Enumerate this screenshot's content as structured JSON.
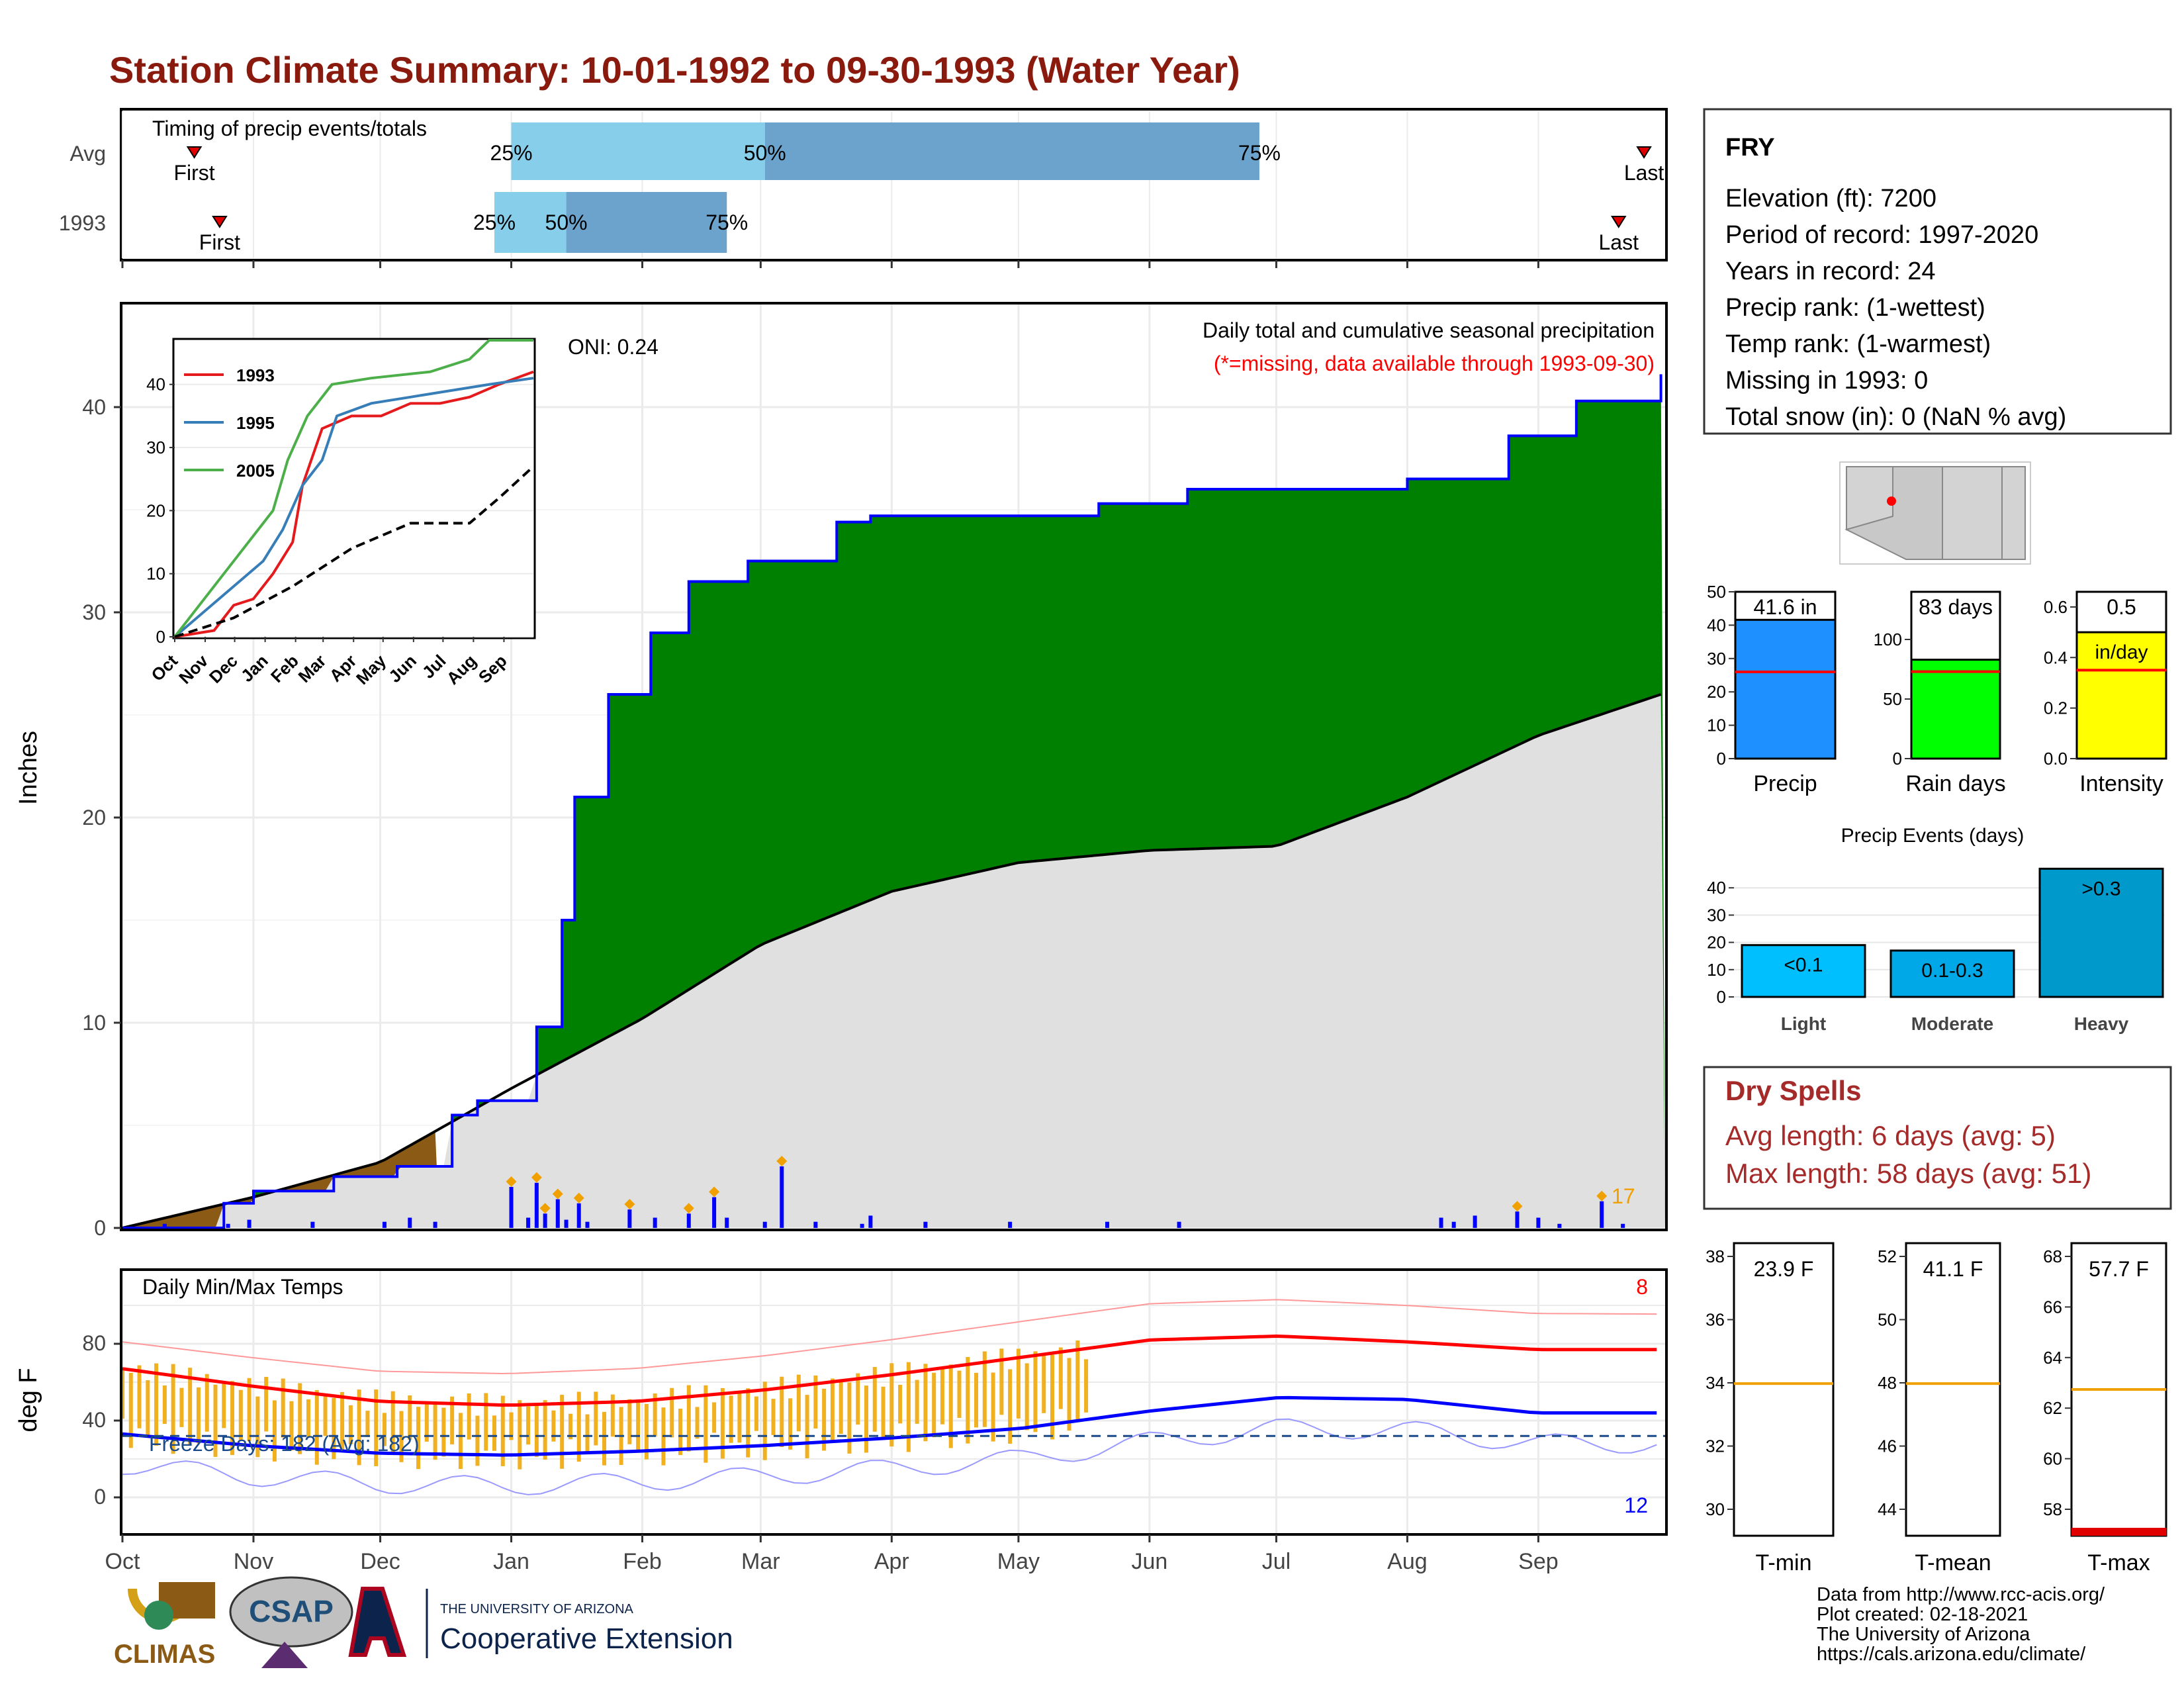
{
  "title": "Station Climate Summary: 10-01-1992 to 09-30-1993 (Water Year)",
  "colors": {
    "title": "#8b1a0e",
    "green": "#008000",
    "blue_line": "#0000ff",
    "brown": "#8b5a14",
    "gray_fill": "#e0e0e0",
    "orange": "#f0b020",
    "light_blue": "#87ceeb",
    "mid_blue": "#6ba3cc",
    "red": "#ff0000",
    "dry_spell": "#a52a2a"
  },
  "timing": {
    "label": "Timing of precip events/totals",
    "rows": [
      {
        "name": "Avg",
        "first": "2000-10-18",
        "p25": "2001-01-01",
        "p50": "2001-03-02",
        "p75": "2001-06-27",
        "last": "2001-09-26",
        "first_label": "First",
        "last_label": "Last",
        "p25_label": "25%",
        "p50_label": "50%",
        "p75_label": "75%"
      },
      {
        "name": "1993",
        "first": "1992-10-24",
        "p25": "1992-12-28",
        "p50": "1993-01-14",
        "p75": "1993-02-21",
        "last": "1993-09-20",
        "first_label": "First",
        "last_label": "Last",
        "p25_label": "25%",
        "p50_label": "50%",
        "p75_label": "75%"
      }
    ]
  },
  "precip": {
    "header": "Daily total and cumulative seasonal precipitation",
    "missing_note": "(*=missing, data available through 1993-09-30)",
    "oni": "ONI: 0.24",
    "ylabel": "Inches",
    "yticks": [
      0,
      10,
      20,
      30,
      40
    ],
    "ylim": [
      0,
      45
    ],
    "count_label": "17"
  },
  "inset": {
    "legend": [
      "1993",
      "1995",
      "2005"
    ],
    "colors": [
      "#e41a1c",
      "#377eb8",
      "#4daf4a"
    ],
    "yticks": [
      "0",
      "10",
      "20",
      "30",
      "40"
    ],
    "months": [
      "Oct",
      "Nov",
      "Dec",
      "Jan",
      "Feb",
      "Mar",
      "Apr",
      "May",
      "Jun",
      "Jul",
      "Aug",
      "Sep"
    ]
  },
  "temps": {
    "label": "Daily Min/Max Temps",
    "freeze": "Freeze Days: 182 (Avg: 182)",
    "ylabel": "deg F",
    "yticks": [
      "0",
      "40",
      "80"
    ],
    "max_count": "8",
    "min_count": "12"
  },
  "months": [
    "Oct",
    "Nov",
    "Dec",
    "Jan",
    "Feb",
    "Mar",
    "Apr",
    "May",
    "Jun",
    "Jul",
    "Aug",
    "Sep"
  ],
  "station": {
    "name": "FRY",
    "lines": [
      "Elevation (ft): 7200",
      "Period of record: 1997-2020",
      "Years in record: 24",
      "Precip rank:  (1-wettest)",
      "Temp rank:  (1-warmest)",
      "Missing in 1993: 0",
      "Total snow (in): 0 (NaN % avg)"
    ]
  },
  "summary_bars": [
    {
      "label": "Precip",
      "value_label": "41.6 in",
      "value": 41.6,
      "avg": 26,
      "max": 50,
      "ticks": [
        "0",
        "10",
        "20",
        "30",
        "40",
        "50"
      ],
      "color": "#1e90ff"
    },
    {
      "label": "Rain days",
      "value_label": "83 days",
      "value": 83,
      "avg": 73,
      "max": 140,
      "ticks": [
        "0",
        "50",
        "100"
      ],
      "color": "#00ff00"
    },
    {
      "label": "Intensity",
      "value_label": "0.5",
      "sub_label": "in/day",
      "value": 0.5,
      "avg": 0.35,
      "max": 0.66,
      "ticks": [
        "0.0",
        "0.2",
        "0.4",
        "0.6"
      ],
      "color": "#ffff00"
    }
  ],
  "precip_events": {
    "title": "Precip Events (days)",
    "categories": [
      "Light",
      "Moderate",
      "Heavy"
    ],
    "labels": [
      "<0.1",
      "0.1-0.3",
      ">0.3"
    ],
    "values": [
      19,
      17,
      47
    ],
    "yticks": [
      "0",
      "10",
      "20",
      "30",
      "40"
    ]
  },
  "dry_spells": {
    "title": "Dry Spells",
    "avg_length": "Avg length: 6 days (avg: 5)",
    "max_length": "Max length: 58 days (avg: 51)"
  },
  "temp_summary": [
    {
      "label": "T-min",
      "value_label": "23.9 F",
      "ticks": [
        "30",
        "32",
        "34",
        "36",
        "38"
      ],
      "avg_frac": 0.52
    },
    {
      "label": "T-mean",
      "value_label": "41.1 F",
      "ticks": [
        "44",
        "46",
        "48",
        "50",
        "52"
      ],
      "avg_frac": 0.52
    },
    {
      "label": "T-max",
      "value_label": "57.7 F",
      "ticks": [
        "58",
        "60",
        "62",
        "64",
        "66",
        "68"
      ],
      "avg_frac": 0.5
    }
  ],
  "credits": [
    "Data from http://www.rcc-acis.org/",
    "Plot created: 02-18-2021",
    "The University of Arizona",
    "https://cals.arizona.edu/climate/"
  ],
  "logos": {
    "climas": "CLIMAS",
    "csap": "CSAP",
    "ua_small": "THE UNIVERSITY OF ARIZONA",
    "ua_big": "Cooperative Extension"
  },
  "chart_data": [
    {
      "type": "area",
      "title": "Daily total and cumulative seasonal precipitation",
      "ylabel": "Inches",
      "ylim": [
        0,
        45
      ],
      "series": [
        {
          "name": "1993",
          "x": [
            "1992-10-01",
            "1992-10-25",
            "1992-11-01",
            "1992-11-20",
            "1992-12-05",
            "1992-12-18",
            "1992-12-24",
            "1993-01-07",
            "1993-01-13",
            "1993-01-16",
            "1993-01-24",
            "1993-02-03",
            "1993-02-12",
            "1993-02-26",
            "1993-03-19",
            "1993-03-27",
            "1993-05-20",
            "1993-06-10",
            "1993-07-01",
            "1993-08-01",
            "1993-08-25",
            "1993-09-10",
            "1993-09-30"
          ],
          "y": [
            0,
            1.2,
            1.8,
            2.5,
            3.0,
            5.5,
            6.2,
            9.8,
            15.0,
            21.0,
            26.0,
            29.0,
            31.5,
            32.5,
            34.4,
            34.7,
            35.3,
            36.0,
            36.0,
            36.5,
            38.6,
            40.3,
            41.6
          ]
        },
        {
          "name": "Average",
          "x": [
            "1992-10-01",
            "1992-11-01",
            "1992-12-01",
            "1993-01-01",
            "1993-02-01",
            "1993-03-01",
            "1993-04-01",
            "1993-05-01",
            "1993-06-01",
            "1993-07-01",
            "1993-08-01",
            "1993-09-01",
            "1993-09-30"
          ],
          "y": [
            0,
            1.5,
            3.2,
            6.8,
            10.2,
            13.8,
            16.4,
            17.8,
            18.4,
            18.6,
            21.0,
            24.0,
            26.0
          ]
        }
      ]
    },
    {
      "type": "bar",
      "title": "Precip Events (days)",
      "categories": [
        "Light",
        "Moderate",
        "Heavy"
      ],
      "values": [
        19,
        17,
        47
      ],
      "ylim": [
        0,
        50
      ]
    },
    {
      "type": "line",
      "title": "Daily Min/Max Temps",
      "ylabel": "deg F",
      "x": [
        "Oct",
        "Nov",
        "Dec",
        "Jan",
        "Feb",
        "Mar",
        "Apr",
        "May",
        "Jun",
        "Jul",
        "Aug",
        "Sep"
      ],
      "series": [
        {
          "name": "Avg max",
          "values": [
            67,
            58,
            50,
            48,
            50,
            56,
            64,
            73,
            82,
            84,
            81,
            77
          ]
        },
        {
          "name": "Avg min",
          "values": [
            33,
            27,
            23,
            22,
            24,
            27,
            31,
            36,
            45,
            52,
            51,
            44
          ]
        }
      ]
    }
  ]
}
